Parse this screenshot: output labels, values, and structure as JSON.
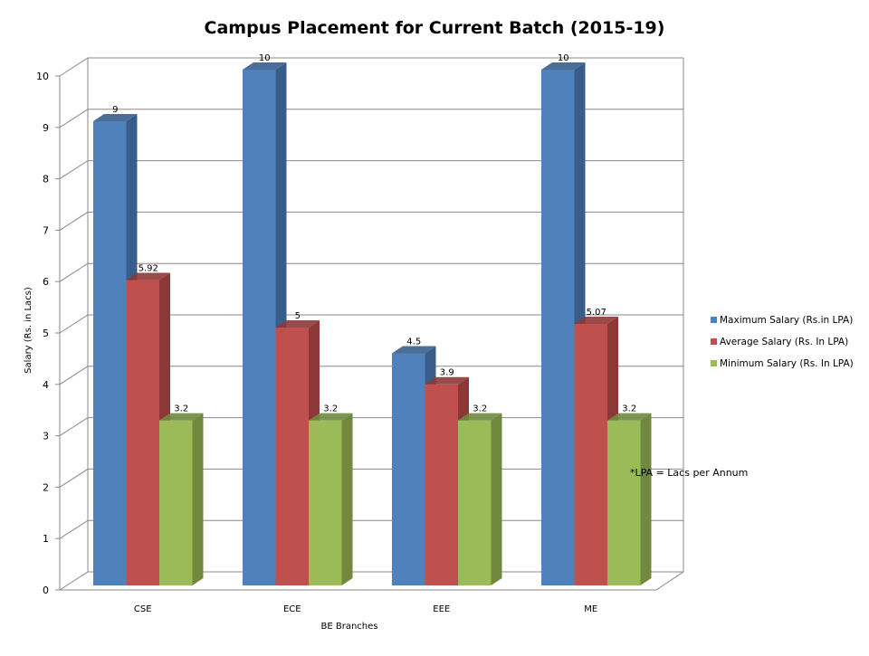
{
  "chart_data": {
    "type": "bar",
    "title": "Campus Placement for Current Batch (2015-19)",
    "xlabel": "BE Branches",
    "ylabel": "Salary (Rs. in Lacs)",
    "ylim": [
      0,
      10
    ],
    "yticks": [
      "0",
      "1",
      "2",
      "3",
      "4",
      "5",
      "6",
      "7",
      "8",
      "9",
      "10"
    ],
    "grid": true,
    "legend_position": "right",
    "categories": [
      "CSE",
      "ECE",
      "EEE",
      "ME"
    ],
    "series": [
      {
        "name": "Maximum Salary (Rs.in LPA)",
        "color": "#4F81BD",
        "side": "#385D8A",
        "values": [
          9,
          10,
          4.5,
          10
        ],
        "labels": [
          "9",
          "10",
          "4.5",
          "10"
        ]
      },
      {
        "name": "Average Salary (Rs. In LPA)",
        "color": "#C0504D",
        "side": "#8C3836",
        "values": [
          5.92,
          5,
          3.9,
          5.07
        ],
        "labels": [
          "5.92",
          "5",
          "3.9",
          "5.07"
        ]
      },
      {
        "name": "Minimum Salary (Rs. In LPA)",
        "color": "#9BBB59",
        "side": "#71893F",
        "values": [
          3.2,
          3.2,
          3.2,
          3.2
        ],
        "labels": [
          "3.2",
          "3.2",
          "3.2",
          "3.2"
        ]
      }
    ],
    "annotation": "*LPA = Lacs per Annum"
  }
}
